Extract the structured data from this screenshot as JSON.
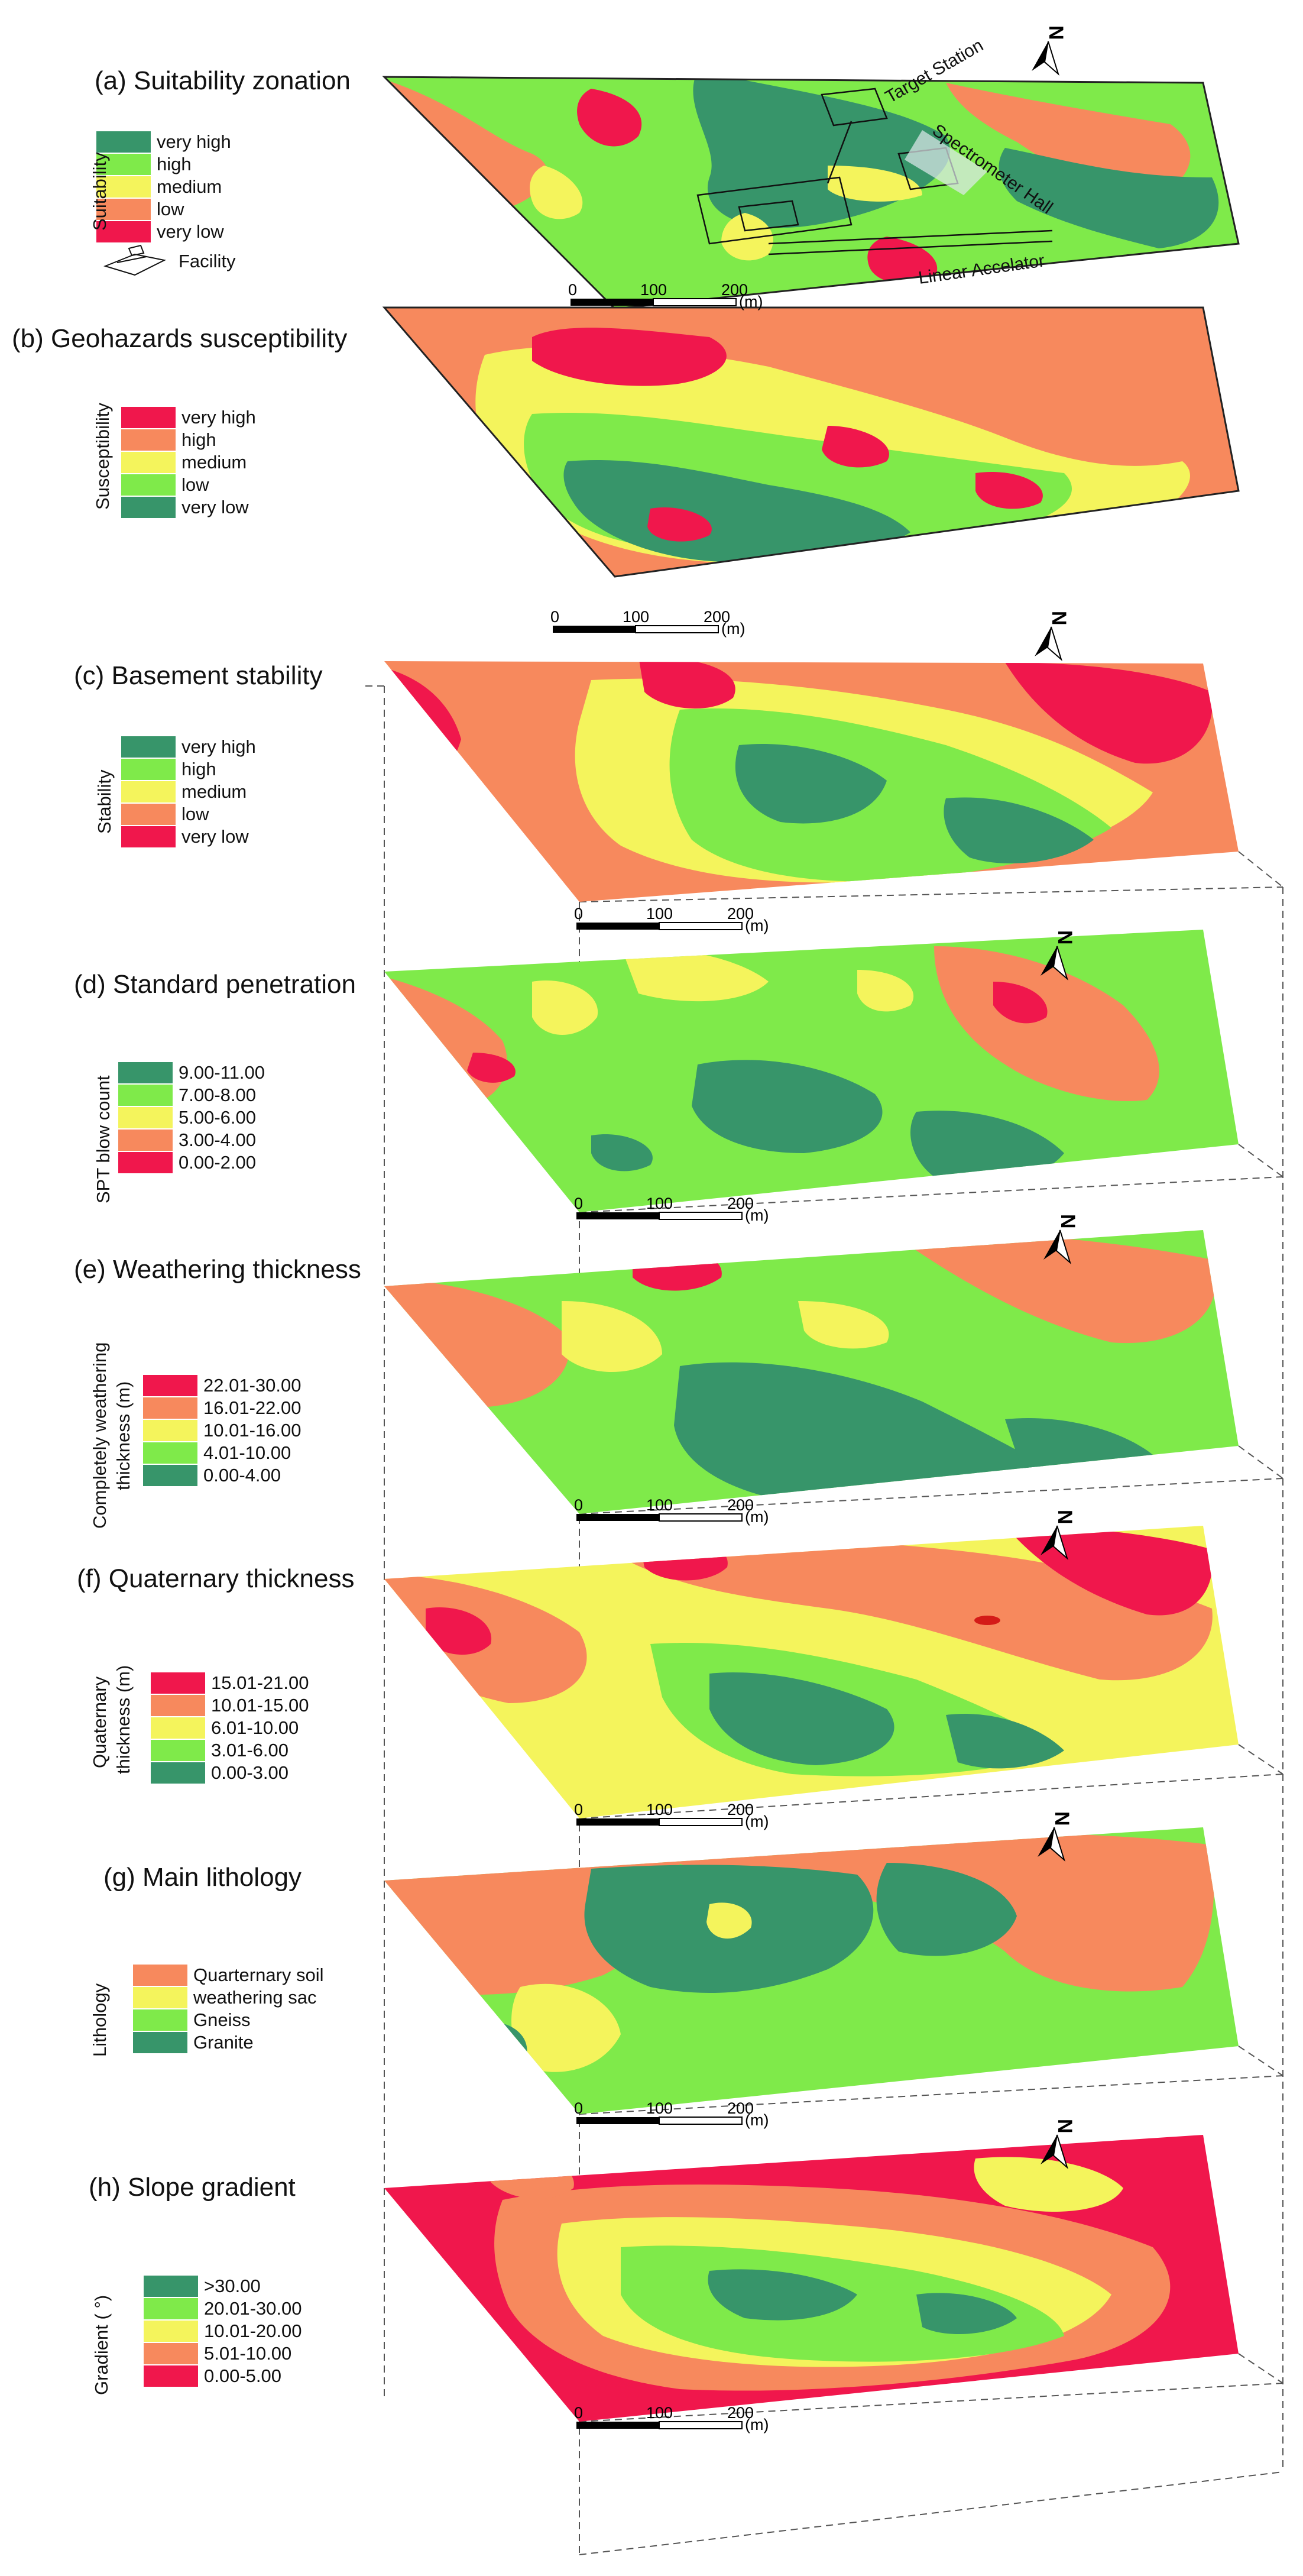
{
  "domain_hint": "Diagram",
  "colors": {
    "very_high": "#37956a",
    "high": "#7fea4a",
    "medium": "#f4f45c",
    "low": "#f7895d",
    "very_low": "#f0174c",
    "outline": "#222222"
  },
  "scale_bar": {
    "label_0": "0",
    "label_100": "100",
    "label_200": "200",
    "unit": "(m)"
  },
  "north_arrow_glyph": "N",
  "panels": [
    {
      "id": "a",
      "title": "(a) Suitability zonation",
      "legend_axis": "Suitability",
      "legend_lines": [
        "Suitability"
      ],
      "items": [
        {
          "label": "very high",
          "color": "#37956a"
        },
        {
          "label": "high",
          "color": "#7fea4a"
        },
        {
          "label": "medium",
          "color": "#f4f45c"
        },
        {
          "label": "low",
          "color": "#f7895d"
        },
        {
          "label": "very low",
          "color": "#f0174c"
        }
      ],
      "facility_label": "Facility",
      "annotations": {
        "target_station": "Target Station",
        "spectrometer_hall": "Spectrometer Hall",
        "linear_accelator": "Linear Accelator"
      }
    },
    {
      "id": "b",
      "title": "(b) Geohazards susceptibility",
      "legend_axis": "Susceptibility",
      "items": [
        {
          "label": "very high",
          "color": "#f0174c"
        },
        {
          "label": "high",
          "color": "#f7895d"
        },
        {
          "label": "medium",
          "color": "#f4f45c"
        },
        {
          "label": "low",
          "color": "#7fea4a"
        },
        {
          "label": "very low",
          "color": "#37956a"
        }
      ]
    },
    {
      "id": "c",
      "title": "(c) Basement stability",
      "legend_axis": "Stability",
      "items": [
        {
          "label": "very high",
          "color": "#37956a"
        },
        {
          "label": "high",
          "color": "#7fea4a"
        },
        {
          "label": "medium",
          "color": "#f4f45c"
        },
        {
          "label": "low",
          "color": "#f7895d"
        },
        {
          "label": "very low",
          "color": "#f0174c"
        }
      ]
    },
    {
      "id": "d",
      "title": "(d) Standard penetration",
      "legend_axis": "SPT blow count",
      "items": [
        {
          "label": "9.00-11.00",
          "color": "#37956a"
        },
        {
          "label": "7.00-8.00",
          "color": "#7fea4a"
        },
        {
          "label": "5.00-6.00",
          "color": "#f4f45c"
        },
        {
          "label": "3.00-4.00",
          "color": "#f7895d"
        },
        {
          "label": "0.00-2.00",
          "color": "#f0174c"
        }
      ]
    },
    {
      "id": "e",
      "title": "(e) Weathering thickness",
      "legend_axis_1": "Completely weathering",
      "legend_axis_2": "thickness (m)",
      "items": [
        {
          "label": "22.01-30.00",
          "color": "#f0174c"
        },
        {
          "label": "16.01-22.00",
          "color": "#f7895d"
        },
        {
          "label": "10.01-16.00",
          "color": "#f4f45c"
        },
        {
          "label": "4.01-10.00",
          "color": "#7fea4a"
        },
        {
          "label": "0.00-4.00",
          "color": "#37956a"
        }
      ]
    },
    {
      "id": "f",
      "title": "(f) Quaternary thickness",
      "legend_axis_1": "Quaternary",
      "legend_axis_2": "thickness (m)",
      "items": [
        {
          "label": "15.01-21.00",
          "color": "#f0174c"
        },
        {
          "label": "10.01-15.00",
          "color": "#f7895d"
        },
        {
          "label": "6.01-10.00",
          "color": "#f4f45c"
        },
        {
          "label": "3.01-6.00",
          "color": "#7fea4a"
        },
        {
          "label": "0.00-3.00",
          "color": "#37956a"
        }
      ]
    },
    {
      "id": "g",
      "title": "(g) Main lithology",
      "legend_axis": "Lithology",
      "items": [
        {
          "label": "Quarternary soil",
          "color": "#f7895d"
        },
        {
          "label": "weathering sac",
          "color": "#f4f45c"
        },
        {
          "label": "Gneiss",
          "color": "#7fea4a"
        },
        {
          "label": "Granite",
          "color": "#37956a"
        }
      ]
    },
    {
      "id": "h",
      "title": "(h) Slope gradient",
      "legend_axis": "Gradient (  °)",
      "items": [
        {
          "label": ">30.00",
          "color": "#37956a"
        },
        {
          "label": "20.01-30.00",
          "color": "#7fea4a"
        },
        {
          "label": "10.01-20.00",
          "color": "#f4f45c"
        },
        {
          "label": "5.01-10.00",
          "color": "#f7895d"
        },
        {
          "label": "0.00-5.00",
          "color": "#f0174c"
        }
      ]
    }
  ]
}
